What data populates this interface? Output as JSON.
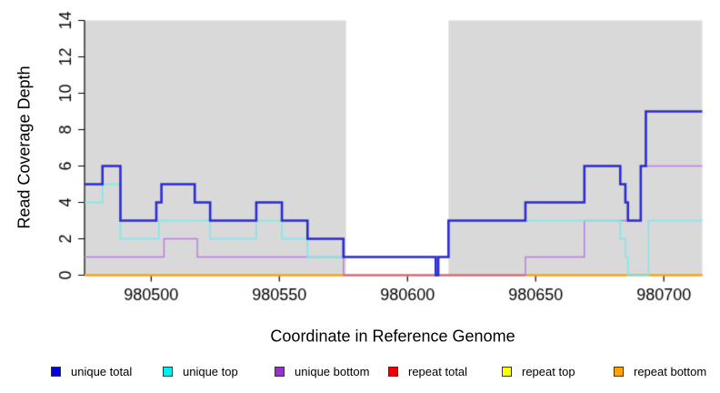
{
  "figure": {
    "y_axis_title": "Read Coverage Depth",
    "x_axis_title": "Coordinate in Reference Genome"
  },
  "chart_data": {
    "type": "line",
    "subtype": "step-after",
    "title": "",
    "xlabel": "Coordinate in Reference Genome",
    "ylabel": "Read Coverage Depth",
    "xlim": [
      980474,
      980715
    ],
    "ylim": [
      0,
      14
    ],
    "x_ticks": [
      980500,
      980550,
      980600,
      980650,
      980700
    ],
    "y_ticks": [
      0,
      2,
      4,
      6,
      8,
      10,
      12,
      14
    ],
    "grid": false,
    "legend_position": "bottom",
    "background_shading": {
      "color": "#d9d9d9",
      "regions": [
        [
          980474,
          980576
        ],
        [
          980616,
          980715
        ]
      ]
    },
    "series": [
      {
        "name": "unique total",
        "legend_color": "#0000ee",
        "line_color": "#2b2bd5",
        "line_width": 2.6,
        "points": [
          [
            980474,
            5
          ],
          [
            980481,
            6
          ],
          [
            980488,
            3
          ],
          [
            980502,
            4
          ],
          [
            980504,
            5
          ],
          [
            980517,
            4
          ],
          [
            980523,
            3
          ],
          [
            980541,
            4
          ],
          [
            980551,
            3
          ],
          [
            980561,
            2
          ],
          [
            980575,
            1
          ],
          [
            980611,
            0
          ],
          [
            980612,
            1
          ],
          [
            980616,
            3
          ],
          [
            980646,
            4
          ],
          [
            980669,
            6
          ],
          [
            980683,
            5
          ],
          [
            980685,
            4
          ],
          [
            980686,
            3
          ],
          [
            980691,
            6
          ],
          [
            980693,
            9
          ]
        ]
      },
      {
        "name": "unique top",
        "legend_color": "#00eeee",
        "line_color": "#7fe7ea",
        "line_width": 1.5,
        "points": [
          [
            980474,
            4
          ],
          [
            980481,
            5
          ],
          [
            980488,
            2
          ],
          [
            980503,
            3
          ],
          [
            980523,
            2
          ],
          [
            980541,
            3
          ],
          [
            980551,
            2
          ],
          [
            980561,
            1
          ],
          [
            980611,
            0
          ],
          [
            980612,
            1
          ],
          [
            980616,
            3
          ],
          [
            980683,
            2
          ],
          [
            980685,
            1
          ],
          [
            980686,
            0
          ],
          [
            980694,
            3
          ]
        ]
      },
      {
        "name": "unique bottom",
        "legend_color": "#9932cc",
        "line_color": "#b97fdc",
        "line_width": 1.5,
        "points": [
          [
            980474,
            1
          ],
          [
            980505,
            2
          ],
          [
            980518,
            1
          ],
          [
            980575,
            0
          ],
          [
            980646,
            1
          ],
          [
            980669,
            3
          ],
          [
            980691,
            6
          ]
        ]
      },
      {
        "name": "repeat total",
        "legend_color": "#ee0000",
        "line_color": "#ee0000",
        "line_width": 1.4,
        "points": [
          [
            980474,
            0
          ]
        ]
      },
      {
        "name": "repeat top",
        "legend_color": "#ffff00",
        "line_color": "#ffff00",
        "line_width": 1.4,
        "points": [
          [
            980474,
            0
          ]
        ]
      },
      {
        "name": "repeat bottom",
        "legend_color": "#ffa500",
        "line_color": "#ffa500",
        "line_width": 1.8,
        "points": [
          [
            980474,
            0
          ]
        ]
      }
    ],
    "zero_line_overlap": {
      "x_range": [
        980575,
        980646
      ],
      "y": 0,
      "color": "#d4627f"
    }
  }
}
